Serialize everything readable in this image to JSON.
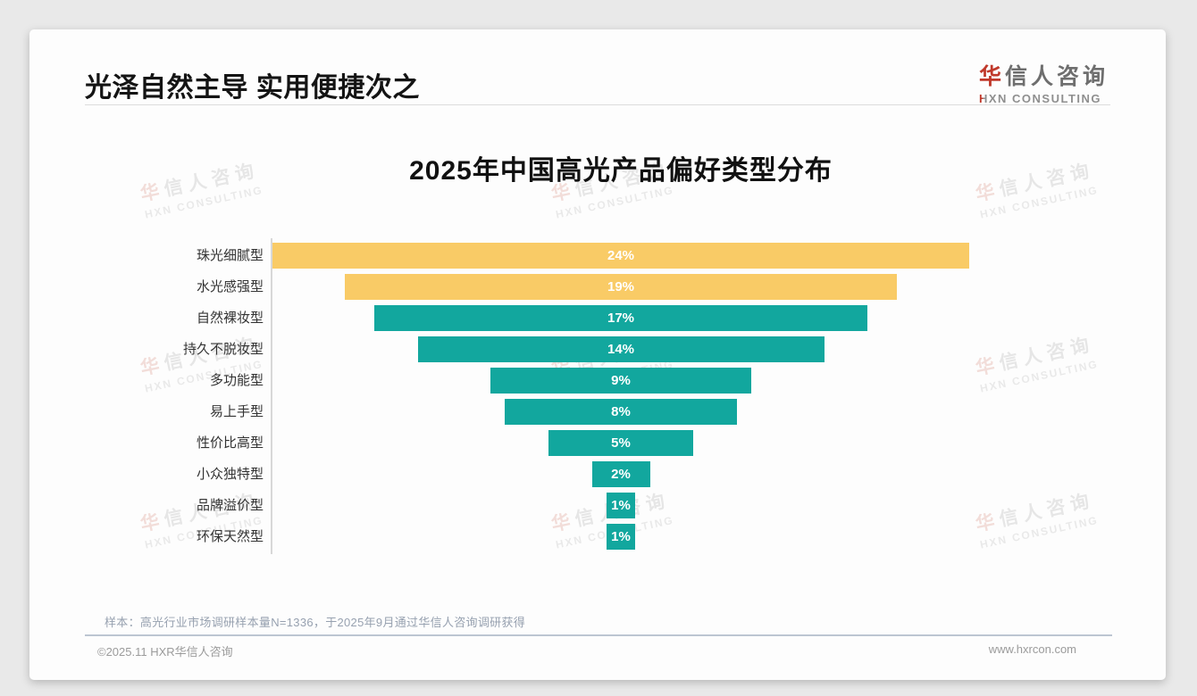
{
  "page": {
    "header": {
      "title": "光泽自然主导 实用便捷次之"
    },
    "logo": {
      "cn_first": "华",
      "cn_rest": "信人咨询",
      "en_first": "H",
      "en_rest": "XN CONSULTING"
    },
    "note": "样本：高光行业市场调研样本量N=1336，于2025年9月通过华信人咨询调研获得",
    "footer": {
      "left": "©2025.11 HXR华信人咨询",
      "right": "www.hxrcon.com"
    }
  },
  "watermark": {
    "cn_first": "华",
    "cn_rest": "信人咨询",
    "en": "HXN CONSULTING"
  },
  "chart_data": {
    "type": "bar",
    "variant": "centered-funnel-horizontal",
    "title": "2025年中国高光产品偏好类型分布",
    "categories": [
      "珠光细腻型",
      "水光感强型",
      "自然裸妆型",
      "持久不脱妆型",
      "多功能型",
      "易上手型",
      "性价比高型",
      "小众独特型",
      "品牌溢价型",
      "环保天然型"
    ],
    "values": [
      24,
      19,
      17,
      14,
      9,
      8,
      5,
      2,
      1,
      1
    ],
    "unit": "%",
    "xlabel": "",
    "ylabel": "",
    "xlim": [
      0,
      24
    ],
    "grid": false,
    "legend": false,
    "colors": {
      "highlight": "#F9CB66",
      "default": "#12A79E",
      "label_text": "#ffffff"
    },
    "highlight_count": 2
  }
}
